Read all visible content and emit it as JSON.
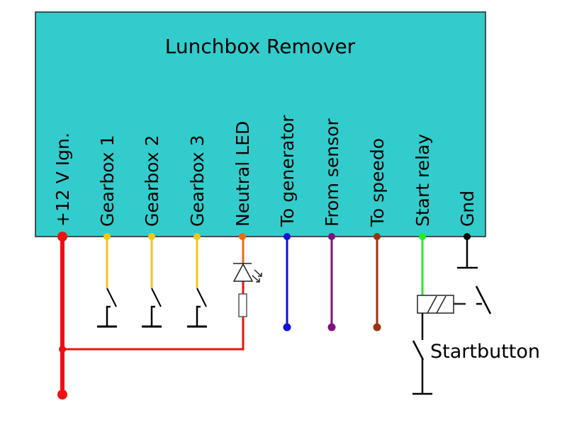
{
  "title": "Lunchbox Remover",
  "box_color": "#33CCCC",
  "pins": [
    {
      "label": "+12 V Ign.",
      "color": "#EE1111"
    },
    {
      "label": "Gearbox 1",
      "color": "#F5C518"
    },
    {
      "label": "Gearbox 2",
      "color": "#F5C518"
    },
    {
      "label": "Gearbox 3",
      "color": "#F5C518"
    },
    {
      "label": "Neutral LED",
      "color": "#EE6A11"
    },
    {
      "label": "To generator",
      "color": "#1111DD"
    },
    {
      "label": "From sensor",
      "color": "#7F117F"
    },
    {
      "label": "To speedo",
      "color": "#993311"
    },
    {
      "label": "Start relay",
      "color": "#22EE22"
    },
    {
      "label": "Gnd",
      "color": "#000000"
    }
  ],
  "startbutton_label": "Startbutton"
}
